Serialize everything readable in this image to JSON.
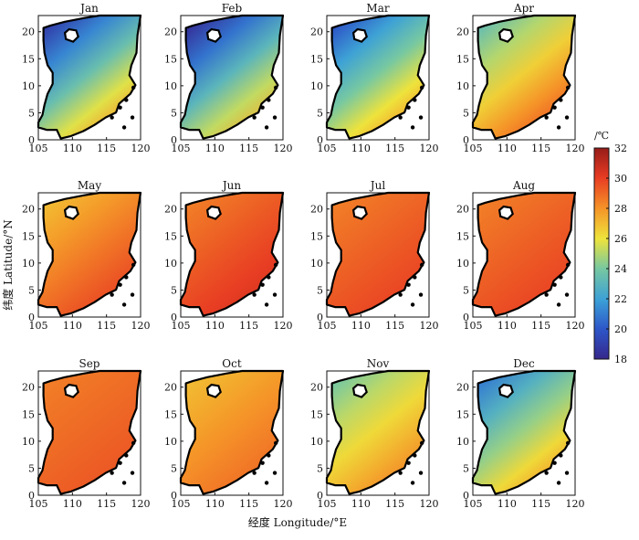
{
  "figure": {
    "y_axis_label": "纬度 Latitude/°N",
    "x_axis_label": "经度 Longitude/°E",
    "x_ticks": [
      "105",
      "110",
      "115",
      "120"
    ],
    "y_ticks": [
      "0",
      "5",
      "10",
      "15",
      "20"
    ]
  },
  "colorbar": {
    "unit": "/℃",
    "ticks": [
      "32",
      "30",
      "28",
      "26",
      "24",
      "22",
      "20",
      "18"
    ],
    "range": [
      18,
      32
    ]
  },
  "map_extent": {
    "lon": [
      105,
      120
    ],
    "lat": [
      0,
      23
    ]
  },
  "panels": [
    {
      "title": "Jan",
      "sst_range": [
        19,
        28
      ]
    },
    {
      "title": "Feb",
      "sst_range": [
        18.5,
        27.5
      ]
    },
    {
      "title": "Mar",
      "sst_range": [
        20,
        28
      ]
    },
    {
      "title": "Apr",
      "sst_range": [
        23.5,
        29.5
      ]
    },
    {
      "title": "May",
      "sst_range": [
        27,
        30
      ]
    },
    {
      "title": "Jun",
      "sst_range": [
        28.5,
        30.5
      ]
    },
    {
      "title": "Jul",
      "sst_range": [
        28.5,
        30
      ]
    },
    {
      "title": "Aug",
      "sst_range": [
        28.5,
        30
      ]
    },
    {
      "title": "Sep",
      "sst_range": [
        28.5,
        29.5
      ]
    },
    {
      "title": "Oct",
      "sst_range": [
        27,
        29
      ]
    },
    {
      "title": "Nov",
      "sst_range": [
        24,
        28.5
      ]
    },
    {
      "title": "Dec",
      "sst_range": [
        21,
        28
      ]
    }
  ]
}
